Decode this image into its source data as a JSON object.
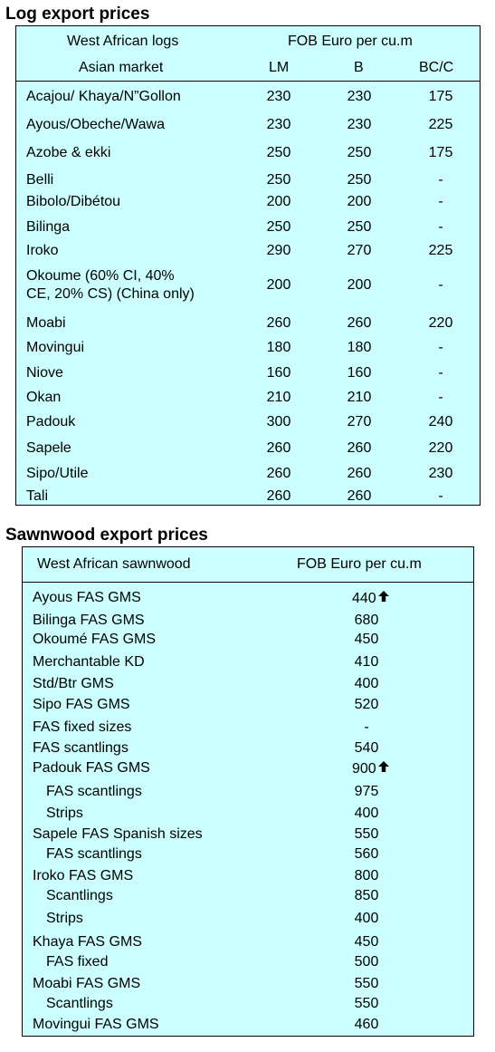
{
  "log": {
    "title": "Log export prices",
    "header": {
      "col1_line1": "West African logs",
      "col1_line2": "Asian market",
      "price_header": "FOB Euro per cu.m",
      "grades": [
        "LM",
        "B",
        "BC/C"
      ]
    },
    "rows": [
      {
        "species": "Acajou/ Khaya/N”Gollon",
        "lm": "230",
        "b": "230",
        "bcc": "175"
      },
      {
        "species": "Ayous/Obeche/Wawa",
        "lm": "230",
        "b": "230",
        "bcc": "225"
      },
      {
        "species": "Azobe & ekki",
        "lm": "250",
        "b": "250",
        "bcc": "175"
      },
      {
        "species": "Belli",
        "lm": "250",
        "b": "250",
        "bcc": "-"
      },
      {
        "species": "Bibolo/Dibétou",
        "lm": "200",
        "b": "200",
        "bcc": "-"
      },
      {
        "species": "Bilinga",
        "lm": "250",
        "b": "250",
        "bcc": "-"
      },
      {
        "species": "Iroko",
        "lm": "290",
        "b": "270",
        "bcc": "225"
      },
      {
        "species": "Okoume (60% CI, 40%",
        "species_line2": "CE, 20% CS) (China only)",
        "lm": "200",
        "b": "200",
        "bcc": "-"
      },
      {
        "species": "Moabi",
        "lm": "260",
        "b": "260",
        "bcc": "220"
      },
      {
        "species": "Movingui",
        "lm": "180",
        "b": "180",
        "bcc": "-"
      },
      {
        "species": "Niove",
        "lm": "160",
        "b": "160",
        "bcc": "-"
      },
      {
        "species": "Okan",
        "lm": "210",
        "b": "210",
        "bcc": "-"
      },
      {
        "species": "Padouk",
        "lm": "300",
        "b": "270",
        "bcc": "240"
      },
      {
        "species": "Sapele",
        "lm": "260",
        "b": "260",
        "bcc": "220"
      },
      {
        "species": "Sipo/Utile",
        "lm": "260",
        "b": "260",
        "bcc": "230"
      },
      {
        "species": "Tali",
        "lm": "260",
        "b": "260",
        "bcc": "-"
      }
    ]
  },
  "sawn": {
    "title": "Sawnwood export prices",
    "header": {
      "col1": "West African sawnwood",
      "price_header": "FOB Euro per cu.m"
    },
    "rows": [
      {
        "product": "Ayous FAS GMS",
        "price": "440",
        "indent": false,
        "trend": "up"
      },
      {
        "product": "Bilinga FAS GMS",
        "price": "680",
        "indent": false
      },
      {
        "product": "Okoumé FAS GMS",
        "price": "450",
        "indent": false
      },
      {
        "product": "Merchantable KD",
        "price": "410",
        "indent": false
      },
      {
        "product": "Std/Btr GMS",
        "price": "400",
        "indent": false
      },
      {
        "product": "Sipo FAS GMS",
        "price": "520",
        "indent": false
      },
      {
        "product": "FAS fixed sizes",
        "price": "-",
        "indent": false
      },
      {
        "product": "FAS scantlings",
        "price": "540",
        "indent": false
      },
      {
        "product": "Padouk FAS GMS",
        "price": "900",
        "indent": false,
        "trend": "up"
      },
      {
        "product": "FAS scantlings",
        "price": "975",
        "indent": true
      },
      {
        "product": "Strips",
        "price": "400",
        "indent": true
      },
      {
        "product": "Sapele FAS Spanish sizes",
        "price": "550",
        "indent": false
      },
      {
        "product": "FAS scantlings",
        "price": "560",
        "indent": true
      },
      {
        "product": "Iroko FAS GMS",
        "price": "800",
        "indent": false
      },
      {
        "product": "Scantlings",
        "price": "850",
        "indent": true
      },
      {
        "product": "Strips",
        "price": "400",
        "indent": true
      },
      {
        "product": "Khaya FAS GMS",
        "price": "450",
        "indent": false
      },
      {
        "product": "FAS fixed",
        "price": "500",
        "indent": true
      },
      {
        "product": "Moabi FAS GMS",
        "price": "550",
        "indent": false
      },
      {
        "product": "Scantlings",
        "price": "550",
        "indent": true
      },
      {
        "product": "Movingui FAS GMS",
        "price": "460",
        "indent": false
      }
    ]
  }
}
